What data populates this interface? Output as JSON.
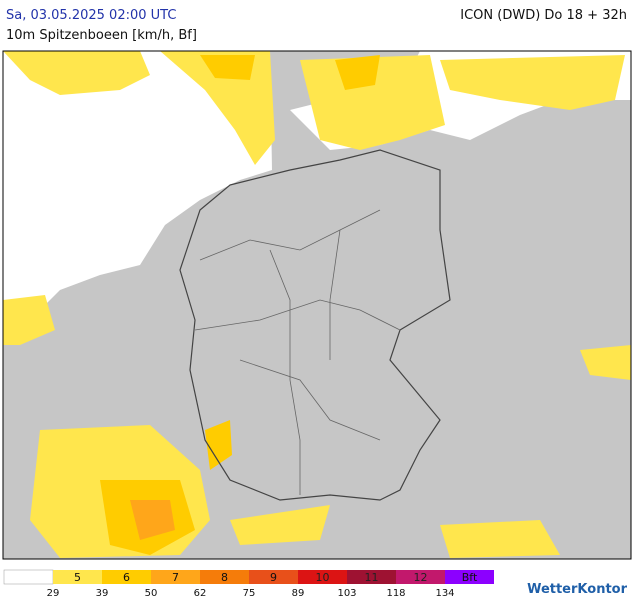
{
  "header": {
    "left_title": "Sa, 03.05.2025 02:00 UTC",
    "right_title": "ICON (DWD) Do 18 + 32h",
    "subtitle": "10m Spitzenboeen [km/h, Bf]"
  },
  "legend": {
    "classes": [
      {
        "label": "5",
        "color": "#ffe64d"
      },
      {
        "label": "6",
        "color": "#ffcc00"
      },
      {
        "label": "7",
        "color": "#ffa61a"
      },
      {
        "label": "8",
        "color": "#f57c0a"
      },
      {
        "label": "9",
        "color": "#e8501a"
      },
      {
        "label": "10",
        "color": "#dc1414"
      },
      {
        "label": "11",
        "color": "#9e1232"
      },
      {
        "label": "12",
        "color": "#c2186c"
      },
      {
        "label": "Bft",
        "color": "#8c00ff"
      }
    ],
    "thresholds": [
      29,
      39,
      50,
      62,
      75,
      89,
      103,
      118,
      134
    ]
  },
  "brand": "WetterKontor"
}
